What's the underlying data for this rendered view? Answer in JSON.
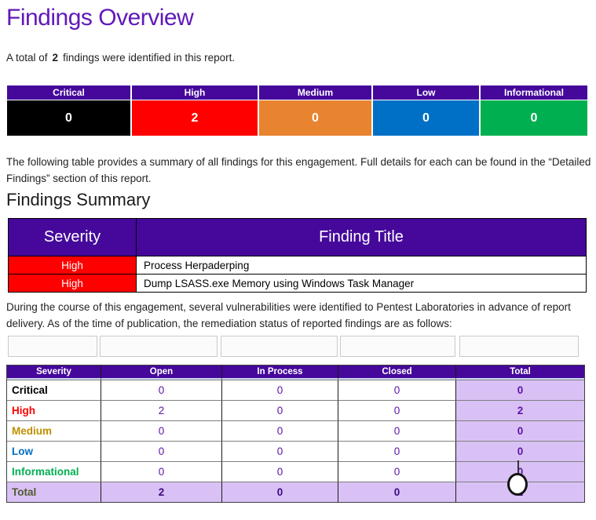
{
  "page": {
    "title": "Findings Overview"
  },
  "intro": {
    "prefix": "A total of",
    "count": "2",
    "suffix": "findings were identified in this report."
  },
  "paragraphs": {
    "summary_intro": "The following table provides a summary of all findings for this engagement. Full details for each can be found in the “Detailed Findings” section of this report.",
    "remediation": "During the course of this engagement, several vulnerabilities were identified to Pentest Laboratories in advance of report delivery. As of the time of publication, the remediation status of reported findings are as follows:"
  },
  "headings": {
    "findings_summary": "Findings Summary"
  },
  "severity_counts": {
    "columns": [
      {
        "label": "Critical",
        "count": "0",
        "bg": "#000000"
      },
      {
        "label": "High",
        "count": "2",
        "bg": "#ff0000"
      },
      {
        "label": "Medium",
        "count": "0",
        "bg": "#e8832f"
      },
      {
        "label": "Low",
        "count": "0",
        "bg": "#0070c6"
      },
      {
        "label": "Informational",
        "count": "0",
        "bg": "#00b050"
      }
    ]
  },
  "findings_table": {
    "headers": {
      "severity": "Severity",
      "title": "Finding Title"
    },
    "rows": [
      {
        "severity": "High",
        "severity_bg": "#ff0000",
        "title": "Process Herpaderping"
      },
      {
        "severity": "High",
        "severity_bg": "#ff0000",
        "title": "Dump LSASS.exe Memory using Windows Task Manager"
      }
    ]
  },
  "status_table": {
    "headers": {
      "severity": "Severity",
      "open": "Open",
      "in_process": "In Process",
      "closed": "Closed",
      "total": "Total"
    },
    "rows": [
      {
        "label": "Critical",
        "label_color": "#000000",
        "open": "0",
        "in_process": "0",
        "closed": "0",
        "total": "0"
      },
      {
        "label": "High",
        "label_color": "#ff0000",
        "open": "2",
        "in_process": "0",
        "closed": "0",
        "total": "2"
      },
      {
        "label": "Medium",
        "label_color": "#bf8f00",
        "open": "0",
        "in_process": "0",
        "closed": "0",
        "total": "0"
      },
      {
        "label": "Low",
        "label_color": "#0070c0",
        "open": "0",
        "in_process": "0",
        "closed": "0",
        "total": "0"
      },
      {
        "label": "Informational",
        "label_color": "#00b050",
        "open": "0",
        "in_process": "0",
        "closed": "0",
        "total": "0"
      }
    ],
    "total_row": {
      "label": "Total",
      "label_color": "#4f5b2f",
      "open": "2",
      "in_process": "0",
      "closed": "0",
      "total": "2"
    }
  },
  "empty_fields": [
    "",
    "",
    "",
    "",
    ""
  ],
  "colors": {
    "title_purple": "#6119b9",
    "table_header_purple": "#45089b",
    "light_purple": "#d9c1f5",
    "value_purple": "#5c14a8"
  },
  "overlay": {
    "caret_icon": "text-caret",
    "pointer_icon": "circle-cursor"
  }
}
